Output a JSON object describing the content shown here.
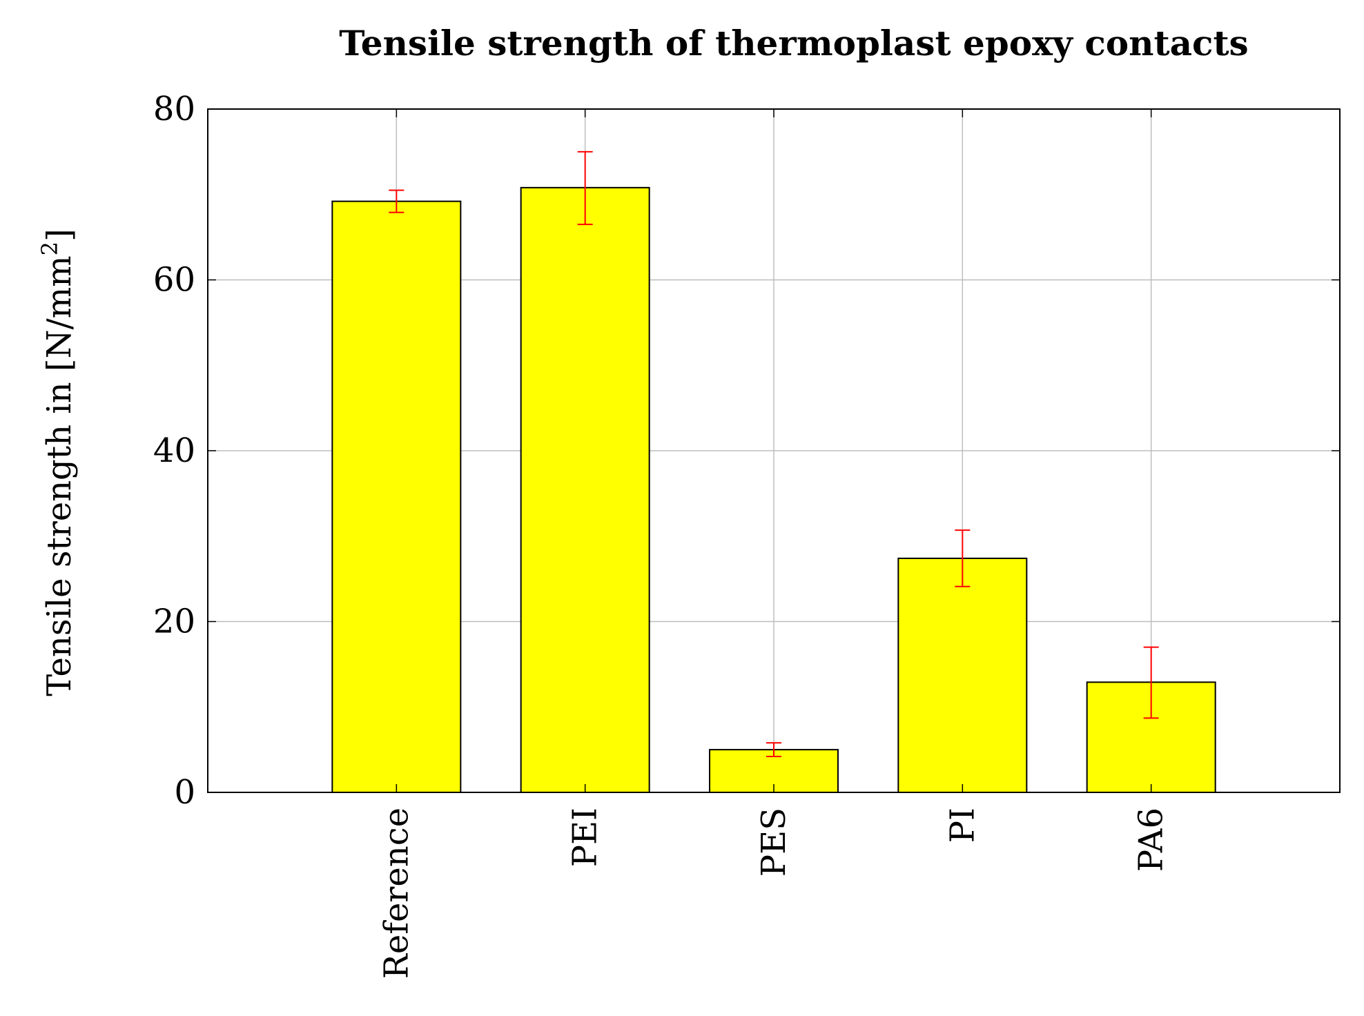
{
  "chart_data": {
    "type": "bar",
    "title": "Tensile strength of thermoplast epoxy contacts",
    "ylabel": {
      "prefix": "Tensile strength in [N/mm",
      "superscript": "2",
      "suffix": "]"
    },
    "xlabel": "",
    "ylim": [
      0,
      80
    ],
    "yticks": [
      0,
      20,
      40,
      60,
      80
    ],
    "grid": true,
    "categories": [
      "Reference",
      "PEI",
      "PES",
      "PI",
      "PA6"
    ],
    "values": [
      69.2,
      70.8,
      5.0,
      27.4,
      12.9
    ],
    "error_low": [
      67.9,
      66.5,
      4.2,
      24.1,
      8.7
    ],
    "error_high": [
      70.5,
      75.0,
      5.8,
      30.7,
      17.0
    ],
    "colors": {
      "bar_fill": "#ffff00",
      "bar_stroke": "#000000",
      "error_bar": "#ff0000",
      "grid": "#bdbdbd",
      "axis": "#000000"
    }
  }
}
